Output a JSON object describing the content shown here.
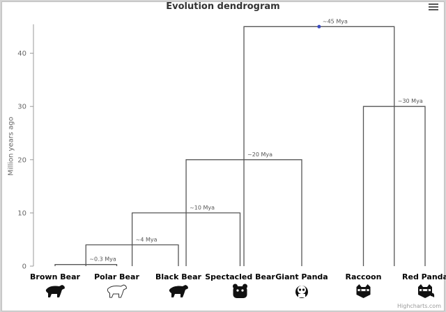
{
  "chart_data": {
    "type": "dendrogram",
    "title": "Evolution dendrogram",
    "ylabel": "Million years ago",
    "ylim": [
      0,
      46
    ],
    "yticks": [
      0,
      10,
      20,
      30,
      40
    ],
    "categories": [
      "Brown Bear",
      "Polar Bear",
      "Black Bear",
      "Spectacled Bear",
      "Giant Panda",
      "Raccoon",
      "Red Panda"
    ],
    "icons": [
      "brown-bear-icon",
      "polar-bear-icon",
      "black-bear-icon",
      "spectacled-bear-icon",
      "giant-panda-icon",
      "raccoon-icon",
      "red-panda-icon"
    ],
    "merges": [
      {
        "label": "~0.3 Mya",
        "height": 0.3,
        "x": [
          0,
          1
        ]
      },
      {
        "label": "~4 Mya",
        "height": 4,
        "x": [
          0.5,
          2
        ]
      },
      {
        "label": "~10 Mya",
        "height": 10,
        "x": [
          1.25,
          3
        ]
      },
      {
        "label": "~20 Mya",
        "height": 20,
        "x": [
          2.125,
          4
        ]
      },
      {
        "label": "~30 Mya",
        "height": 30,
        "x": [
          5,
          6
        ]
      },
      {
        "label": "~45 Mya",
        "height": 45,
        "x": [
          3.0625,
          5.5
        ]
      }
    ],
    "line_color": "#555555",
    "marker_color": "#3b4cc0",
    "grid": false
  },
  "credits": "Highcharts.com"
}
